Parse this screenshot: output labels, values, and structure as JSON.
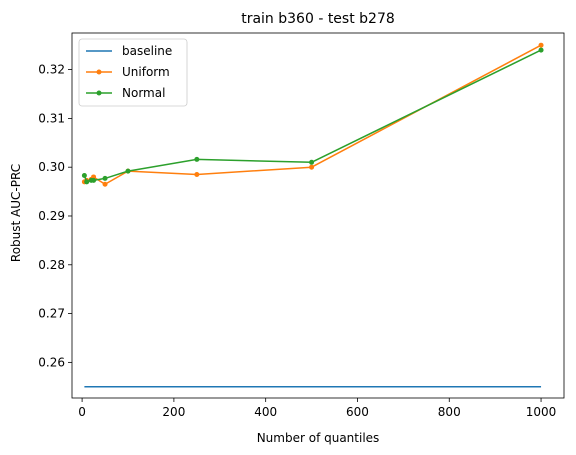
{
  "chart_data": {
    "type": "line",
    "title": "train b360 - test b278",
    "xlabel": "Number of quantiles",
    "ylabel": "Robust AUC-PRC",
    "xlim": [
      -22,
      1050
    ],
    "ylim": [
      0.2527,
      0.3275
    ],
    "xticks": [
      0,
      200,
      400,
      600,
      800,
      1000
    ],
    "yticks": [
      0.26,
      0.27,
      0.28,
      0.29,
      0.3,
      0.31,
      0.32
    ],
    "xtick_labels": [
      "0",
      "200",
      "400",
      "600",
      "800",
      "1000"
    ],
    "ytick_labels": [
      "0.26",
      "0.27",
      "0.28",
      "0.29",
      "0.30",
      "0.31",
      "0.32"
    ],
    "legend_position": "top-left",
    "series": [
      {
        "name": "baseline",
        "color": "#1f77b4",
        "marker": false,
        "x": [
          5,
          1000
        ],
        "y": [
          0.255,
          0.255
        ]
      },
      {
        "name": "Uniform",
        "color": "#ff7f0e",
        "marker": true,
        "x": [
          5,
          10,
          20,
          25,
          50,
          100,
          250,
          500,
          1000
        ],
        "y": [
          0.297,
          0.2973,
          0.2975,
          0.298,
          0.2965,
          0.2992,
          0.2985,
          0.3,
          0.325
        ]
      },
      {
        "name": "Normal",
        "color": "#2ca02c",
        "marker": true,
        "x": [
          5,
          10,
          20,
          25,
          50,
          100,
          250,
          500,
          1000
        ],
        "y": [
          0.2983,
          0.297,
          0.2973,
          0.2973,
          0.2977,
          0.2992,
          0.3016,
          0.301,
          0.324
        ]
      }
    ]
  }
}
